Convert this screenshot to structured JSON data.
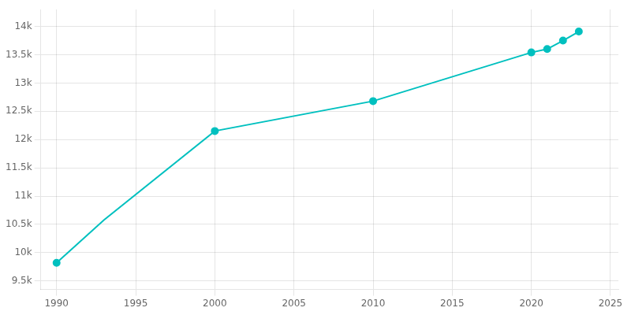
{
  "chart_data": {
    "type": "line",
    "x": [
      1990,
      1993,
      2000,
      2010,
      2020,
      2021,
      2022,
      2023
    ],
    "series": [
      {
        "color": "#00c0bf",
        "marker": "none",
        "line_style": "solid",
        "values": [
          9820,
          10580,
          12151,
          12680,
          13540,
          13600,
          13750,
          13910
        ]
      },
      {
        "color": "#00c0bf",
        "marker": "o",
        "line_style": "none",
        "values": [
          9820,
          null,
          12151,
          12680,
          13540,
          13600,
          13750,
          13910
        ]
      }
    ],
    "xlim": [
      1989.0,
      2025.5
    ],
    "xticks": [
      1990,
      1995,
      2000,
      2005,
      2010,
      2015,
      2020,
      2025
    ],
    "ylim": [
      9350,
      14300
    ],
    "yticks": [
      {
        "value": 9500,
        "label": "9.5k"
      },
      {
        "value": 10000,
        "label": "10k"
      },
      {
        "value": 10500,
        "label": "10.5k"
      },
      {
        "value": 11000,
        "label": "11k"
      },
      {
        "value": 11500,
        "label": "11.5k"
      },
      {
        "value": 12000,
        "label": "12k"
      },
      {
        "value": 12500,
        "label": "12.5k"
      },
      {
        "value": 13000,
        "label": "13k"
      },
      {
        "value": 13500,
        "label": "13.5k"
      },
      {
        "value": 14000,
        "label": "14k"
      }
    ],
    "grid": true
  }
}
